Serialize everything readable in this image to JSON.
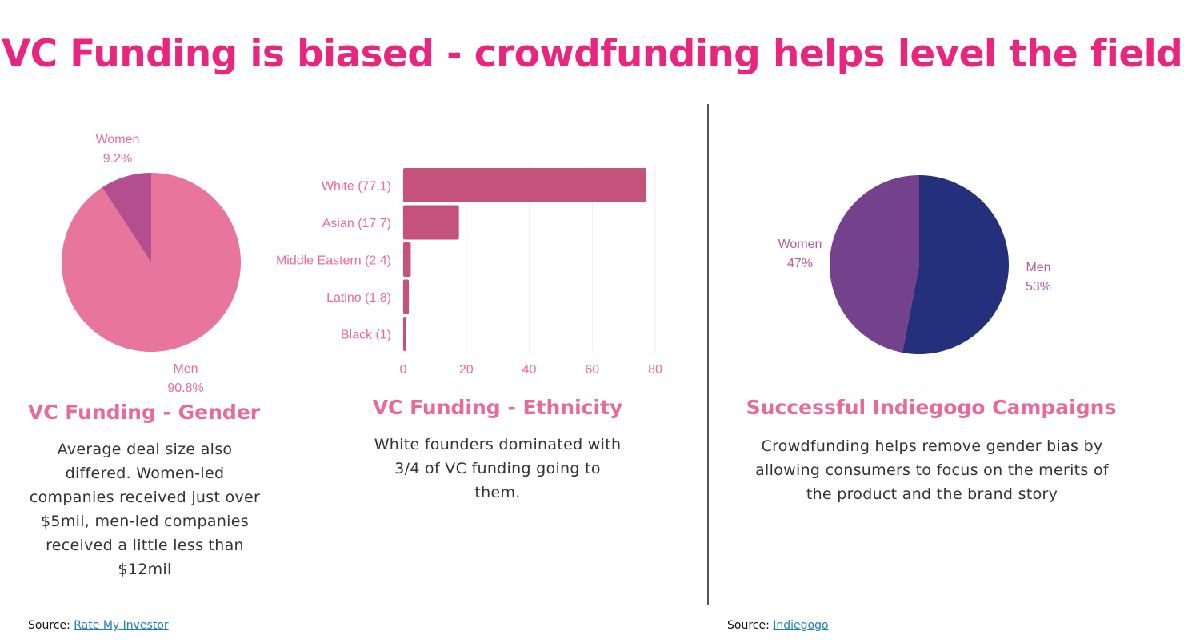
{
  "title": "VC Funding is biased - crowdfunding helps level the field",
  "colors": {
    "title": "#e8267f",
    "subhead": "#e8699a",
    "label_pink": "#e8699a",
    "label_purple": "#b05aa0",
    "pie_men": "#e8759c",
    "pie_women": "#b34f8e",
    "bar": "#c4527a",
    "indiegogo_men": "#24307c",
    "indiegogo_women": "#74428c"
  },
  "sections": {
    "gender": {
      "heading": "VC Funding - Gender",
      "description": "Average deal size also differed.  Women-led companies received just over $5mil, men-led companies received a little less than $12mil"
    },
    "ethnicity": {
      "heading": "VC Funding - Ethnicity",
      "description": "White founders dominated with 3/4 of VC funding going to them."
    },
    "indiegogo": {
      "heading": "Successful Indiegogo Campaigns",
      "description": "Crowdfunding helps remove gender bias by allowing consumers to focus on the merits of the product and the brand story"
    }
  },
  "sources": {
    "left": {
      "prefix": "Source: ",
      "link_text": "Rate My Investor"
    },
    "right": {
      "prefix": "Source: ",
      "link_text": "Indiegogo"
    }
  },
  "chart_data": [
    {
      "type": "pie",
      "slices": [
        {
          "label": "Women",
          "value_label": "9.2%",
          "value": 9.2
        },
        {
          "label": "Men",
          "value_label": "90.8%",
          "value": 90.8
        }
      ]
    },
    {
      "type": "bar",
      "orientation": "horizontal",
      "categories": [
        "White (77.1)",
        "Asian (17.7)",
        "Middle Eastern (2.4)",
        "Latino (1.8)",
        "Black (1)"
      ],
      "values": [
        77.1,
        17.7,
        2.4,
        1.8,
        1
      ],
      "xlim": [
        0,
        80
      ],
      "xticks": [
        0,
        20,
        40,
        60,
        80
      ]
    },
    {
      "type": "pie",
      "slices": [
        {
          "label": "Men",
          "value_label": "53%",
          "value": 53
        },
        {
          "label": "Women",
          "value_label": "47%",
          "value": 47
        }
      ]
    }
  ]
}
